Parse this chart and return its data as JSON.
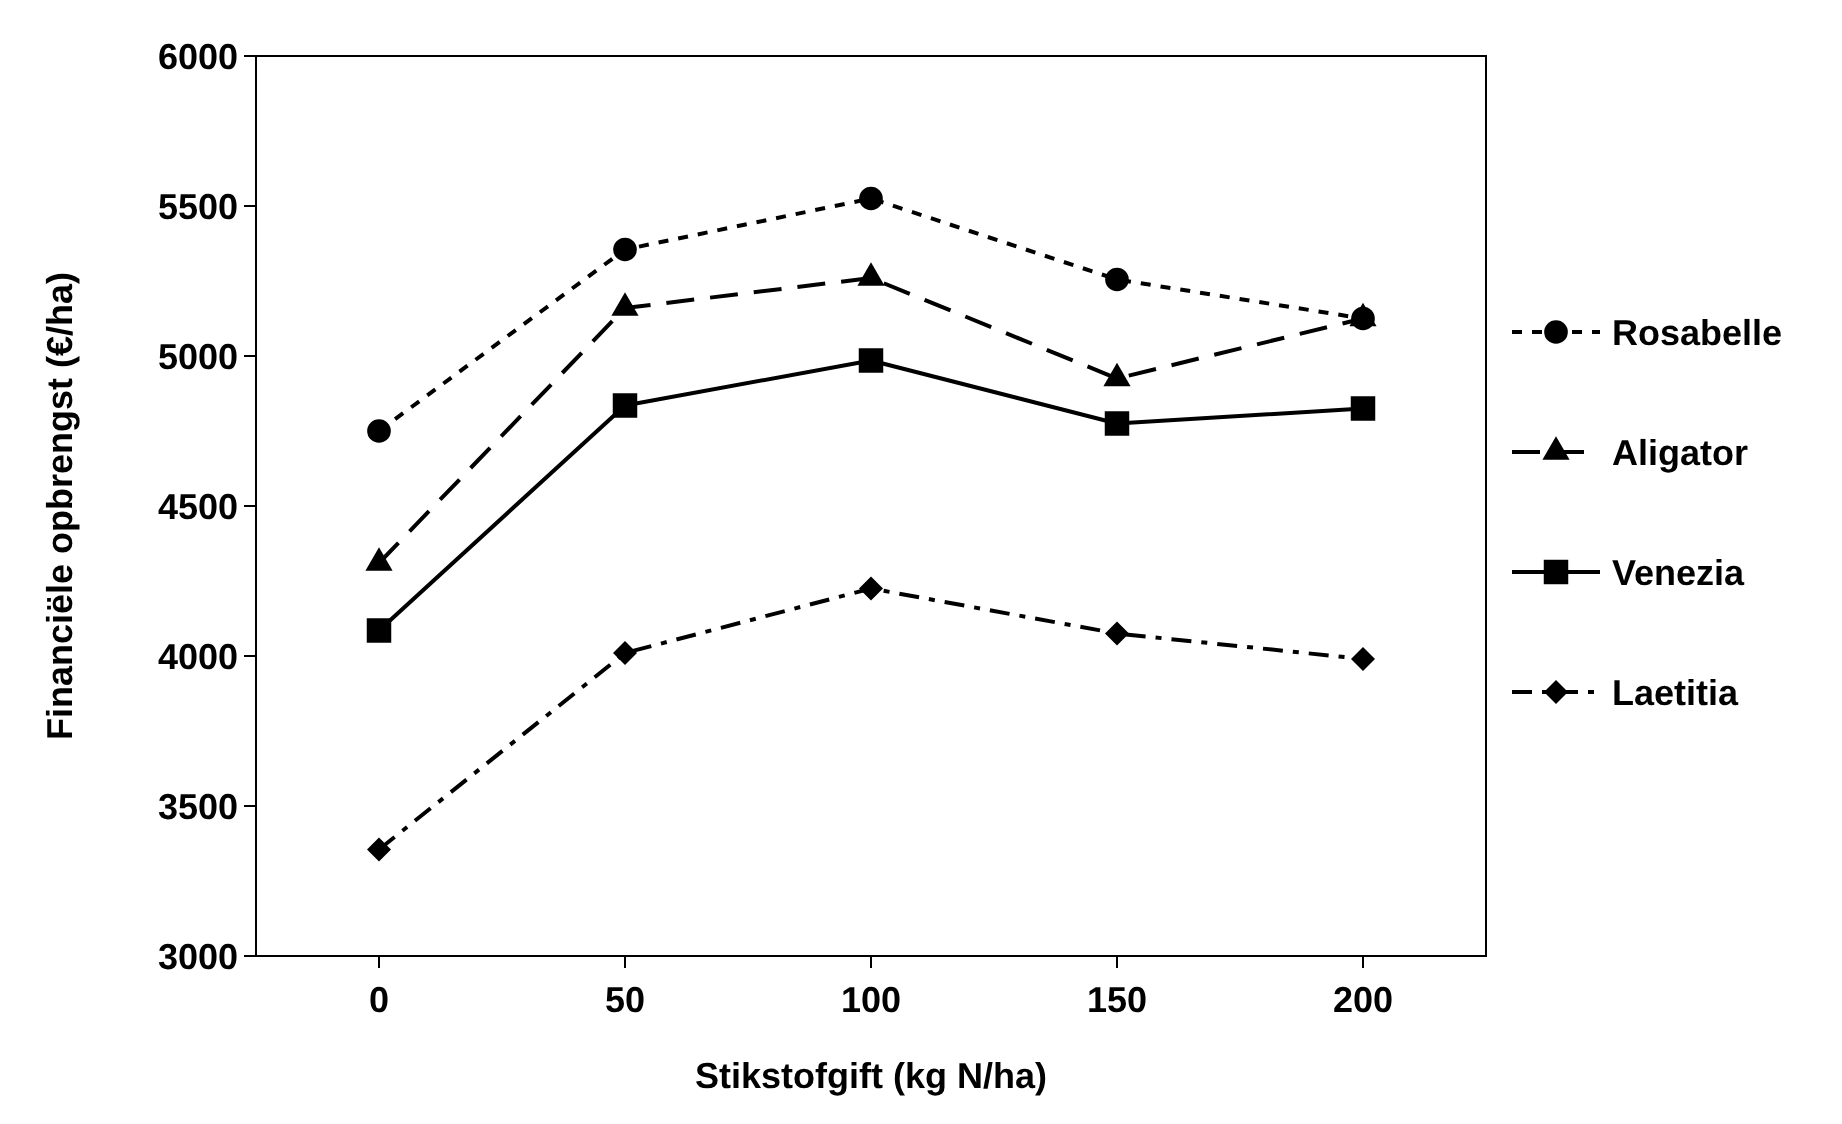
{
  "chart_data": {
    "type": "line",
    "xlabel": "Stikstofgift (kg N/ha)",
    "ylabel": "Financiële opbrengst (€/ha)",
    "x": [
      0,
      50,
      100,
      150,
      200
    ],
    "xlim": [
      -25,
      225
    ],
    "xticks": [
      0,
      50,
      100,
      150,
      200
    ],
    "ylim": [
      3000,
      6000
    ],
    "yticks": [
      3000,
      3500,
      4000,
      4500,
      5000,
      5500,
      6000
    ],
    "grid": false,
    "legend": "right",
    "series": [
      {
        "name": "Rosabelle",
        "color": "#000000",
        "marker": "circle",
        "line_style": "dotted",
        "values": [
          4750,
          5355,
          5525,
          5255,
          5125
        ]
      },
      {
        "name": "Aligator",
        "color": "#000000",
        "marker": "triangle",
        "line_style": "dashed",
        "values": [
          4310,
          5160,
          5260,
          4925,
          5125
        ]
      },
      {
        "name": "Venezia",
        "color": "#000000",
        "marker": "square",
        "line_style": "solid",
        "values": [
          4085,
          4835,
          4985,
          4775,
          4825
        ]
      },
      {
        "name": "Laetitia",
        "color": "#000000",
        "marker": "diamond",
        "line_style": "dashdot",
        "values": [
          3355,
          4010,
          4225,
          4075,
          3990
        ]
      }
    ]
  }
}
